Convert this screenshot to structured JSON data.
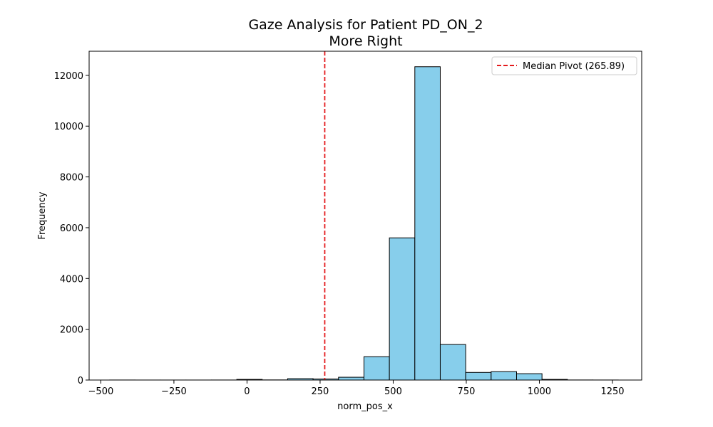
{
  "chart_data": {
    "type": "bar",
    "title": "Gaze Analysis for Patient PD_ON_2",
    "subtitle": "More Right",
    "xlabel": "norm_pos_x",
    "ylabel": "Frequency",
    "xlim": [
      -540,
      1350
    ],
    "ylim": [
      0,
      12950
    ],
    "xticks": [
      -500,
      -250,
      0,
      250,
      500,
      750,
      1000,
      1250
    ],
    "xtick_labels": [
      "−500",
      "−250",
      "0",
      "250",
      "500",
      "750",
      "1000",
      "1250"
    ],
    "yticks": [
      0,
      2000,
      4000,
      6000,
      8000,
      10000,
      12000
    ],
    "ytick_labels": [
      "0",
      "2000",
      "4000",
      "6000",
      "8000",
      "10000",
      "12000"
    ],
    "bins": [
      {
        "start": -470,
        "end": -383,
        "value": 2
      },
      {
        "start": -383,
        "end": -296,
        "value": 1
      },
      {
        "start": -296,
        "end": -209,
        "value": 1
      },
      {
        "start": -209,
        "end": -122,
        "value": 1
      },
      {
        "start": -122,
        "end": -35,
        "value": 2
      },
      {
        "start": -35,
        "end": 52,
        "value": 25
      },
      {
        "start": 52,
        "end": 139,
        "value": 5
      },
      {
        "start": 139,
        "end": 226,
        "value": 55
      },
      {
        "start": 226,
        "end": 313,
        "value": 40
      },
      {
        "start": 313,
        "end": 400,
        "value": 110
      },
      {
        "start": 400,
        "end": 487,
        "value": 920
      },
      {
        "start": 487,
        "end": 574,
        "value": 5600
      },
      {
        "start": 574,
        "end": 661,
        "value": 12340
      },
      {
        "start": 661,
        "end": 748,
        "value": 1400
      },
      {
        "start": 748,
        "end": 835,
        "value": 300
      },
      {
        "start": 835,
        "end": 922,
        "value": 330
      },
      {
        "start": 922,
        "end": 1009,
        "value": 250
      },
      {
        "start": 1009,
        "end": 1096,
        "value": 25
      },
      {
        "start": 1096,
        "end": 1183,
        "value": 3
      },
      {
        "start": 1183,
        "end": 1270,
        "value": 2
      }
    ],
    "median_line": {
      "x": 265.89,
      "label": "Median Pivot (265.89)",
      "color": "#e41a1c"
    },
    "bar_color": "#87ceeb",
    "bar_edge_color": "#000000",
    "legend_position": "top-right",
    "grid": false
  }
}
